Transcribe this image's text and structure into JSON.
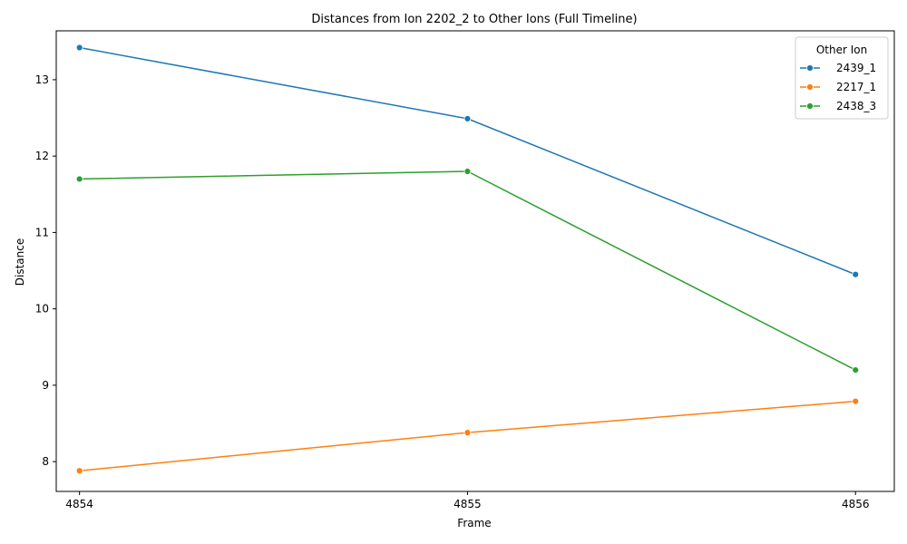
{
  "chart_data": {
    "type": "line",
    "title": "Distances from Ion 2202_2 to Other Ions (Full Timeline)",
    "xlabel": "Frame",
    "ylabel": "Distance",
    "x": [
      4854,
      4855,
      4856
    ],
    "xlim": [
      4853.94,
      4856.1
    ],
    "ylim": [
      7.61,
      13.64
    ],
    "yticks": [
      8,
      9,
      10,
      11,
      12,
      13
    ],
    "grid": false,
    "legend": {
      "title": "Other Ion",
      "placement": "top-right"
    },
    "series": [
      {
        "name": "2439_1",
        "color": "#1f77b4",
        "values": [
          13.42,
          12.49,
          10.45
        ]
      },
      {
        "name": "2217_1",
        "color": "#ff7f0e",
        "values": [
          7.88,
          8.38,
          8.79
        ]
      },
      {
        "name": "2438_3",
        "color": "#2ca02c",
        "values": [
          11.7,
          11.8,
          9.2
        ]
      }
    ]
  }
}
